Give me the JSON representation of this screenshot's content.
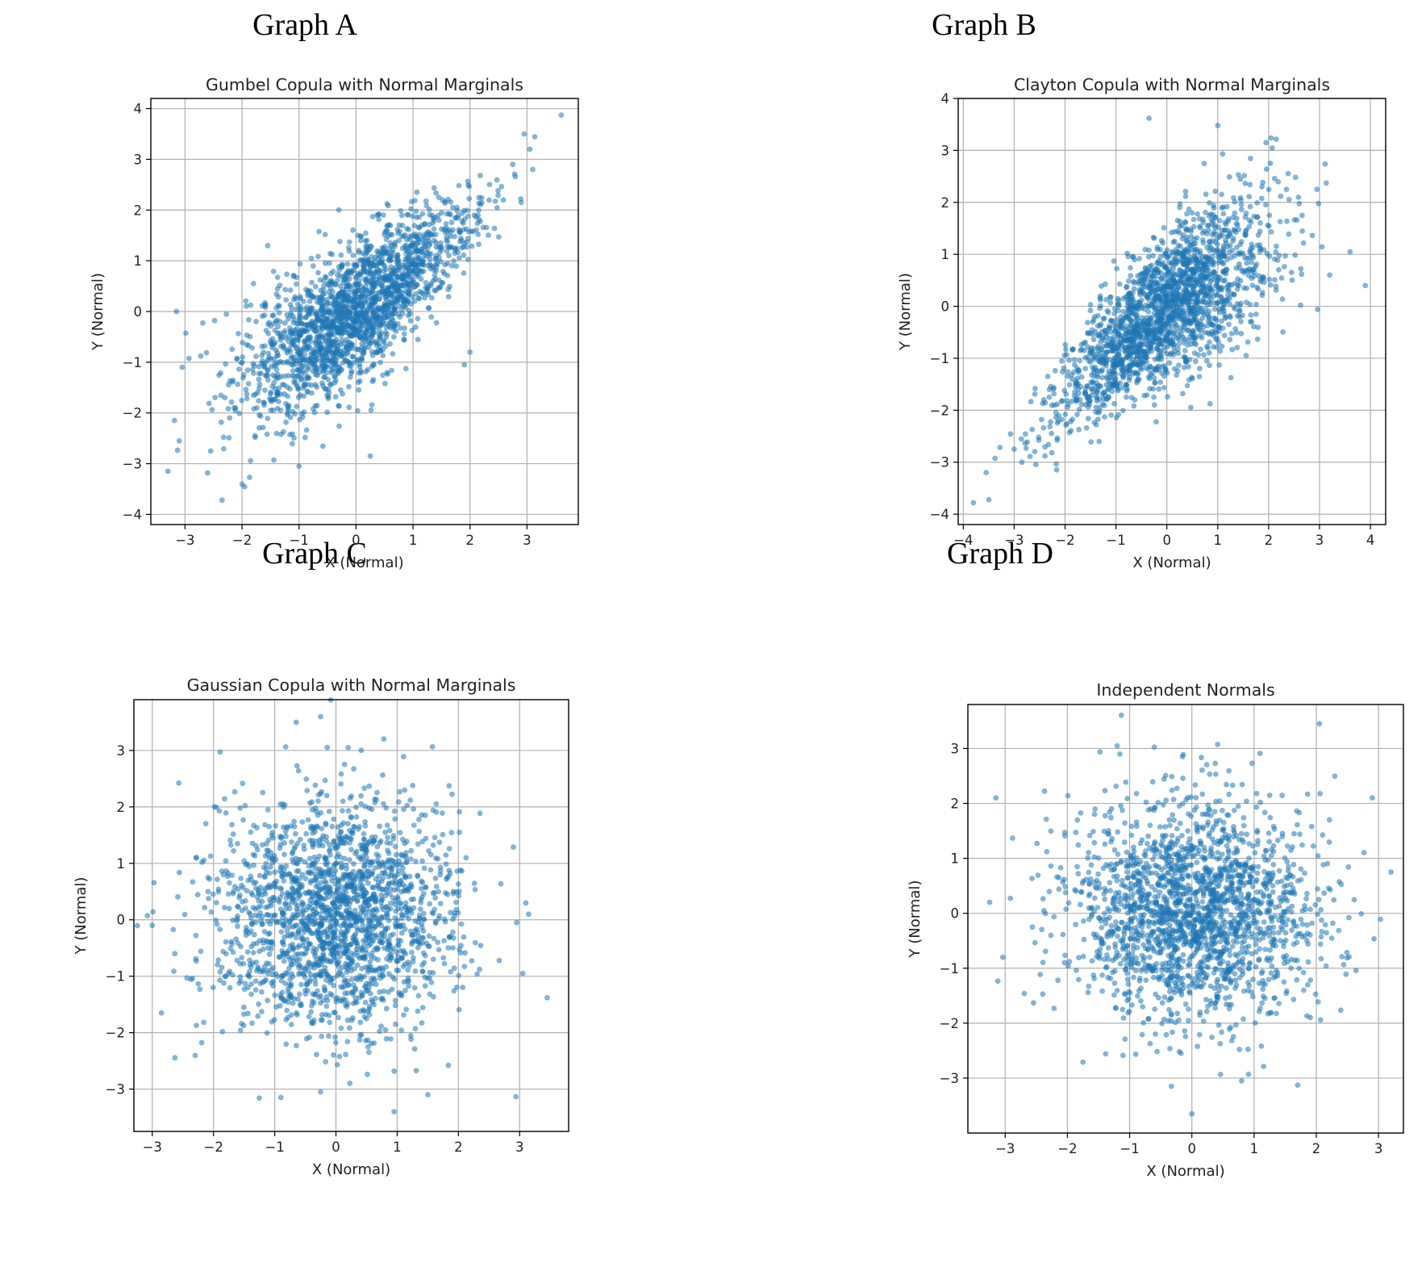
{
  "headings": [
    "Graph A",
    "Graph B",
    "Graph C",
    "Graph D"
  ],
  "chart_data": [
    {
      "type": "scatter",
      "heading": "Graph A",
      "title": "Gumbel Copula with Normal Marginals",
      "xlabel": "X (Normal)",
      "ylabel": "Y (Normal)",
      "xlim": [
        -3.6,
        3.9
      ],
      "ylim": [
        -4.2,
        4.2
      ],
      "xticks": [
        -3,
        -2,
        -1,
        0,
        1,
        2,
        3
      ],
      "yticks": [
        -4,
        -3,
        -2,
        -1,
        0,
        1,
        2,
        3,
        4
      ],
      "grid": true,
      "color": "#1f77b4",
      "n_points": 2000,
      "dependence": "upper-tail",
      "correlation": 0.75,
      "points": [
        [
          3.6,
          3.87
        ],
        [
          2.95,
          3.5
        ],
        [
          3.1,
          2.8
        ],
        [
          3.05,
          3.2
        ],
        [
          2.75,
          2.9
        ],
        [
          2.9,
          2.15
        ],
        [
          -3.3,
          -3.15
        ],
        [
          -2.35,
          -3.72
        ],
        [
          -3.15,
          0.0
        ],
        [
          -3.05,
          -1.1
        ],
        [
          -3.1,
          -2.55
        ],
        [
          -2.55,
          -2.75
        ],
        [
          -1.0,
          -3.05
        ],
        [
          0.25,
          -2.85
        ],
        [
          2.0,
          -0.8
        ],
        [
          -1.55,
          1.3
        ],
        [
          -1.8,
          0.55
        ],
        [
          1.9,
          -1.05
        ]
      ]
    },
    {
      "type": "scatter",
      "heading": "Graph B",
      "title": "Clayton Copula with Normal Marginals",
      "xlabel": "X (Normal)",
      "ylabel": "Y (Normal)",
      "xlim": [
        -4.1,
        4.3
      ],
      "ylim": [
        -4.2,
        4.0
      ],
      "xticks": [
        -4,
        -3,
        -2,
        -1,
        0,
        1,
        2,
        3,
        4
      ],
      "yticks": [
        -4,
        -3,
        -2,
        -1,
        0,
        1,
        2,
        3,
        4
      ],
      "grid": true,
      "color": "#1f77b4",
      "n_points": 2000,
      "dependence": "lower-tail",
      "correlation": 0.72,
      "points": [
        [
          -3.8,
          -3.78
        ],
        [
          -3.5,
          -3.72
        ],
        [
          -3.55,
          -3.2
        ],
        [
          -3.0,
          -2.75
        ],
        [
          -2.85,
          -3.0
        ],
        [
          -0.35,
          3.62
        ],
        [
          1.0,
          3.48
        ],
        [
          1.95,
          3.15
        ],
        [
          3.9,
          0.4
        ],
        [
          3.6,
          1.05
        ],
        [
          3.2,
          0.6
        ],
        [
          2.95,
          2.25
        ],
        [
          2.35,
          2.25
        ]
      ]
    },
    {
      "type": "scatter",
      "heading": "Graph C",
      "title": "Gaussian Copula with Normal Marginals",
      "xlabel": "X (Normal)",
      "ylabel": "Y (Normal)",
      "xlim": [
        -3.3,
        3.8
      ],
      "ylim": [
        -3.75,
        3.9
      ],
      "xticks": [
        -3,
        -2,
        -1,
        0,
        1,
        2,
        3
      ],
      "yticks": [
        -3,
        -2,
        -1,
        0,
        1,
        2,
        3
      ],
      "grid": true,
      "color": "#1f77b4",
      "n_points": 2000,
      "dependence": "none",
      "correlation": 0.0,
      "points": [
        [
          -3.0,
          -0.1
        ],
        [
          -2.85,
          -1.65
        ],
        [
          3.45,
          -1.38
        ],
        [
          -0.25,
          3.6
        ],
        [
          -0.65,
          3.5
        ],
        [
          0.2,
          3.05
        ],
        [
          0.95,
          -3.4
        ],
        [
          -0.9,
          -3.15
        ],
        [
          -0.25,
          -3.05
        ],
        [
          1.5,
          -3.1
        ],
        [
          3.05,
          -0.95
        ],
        [
          3.1,
          0.3
        ]
      ]
    },
    {
      "type": "scatter",
      "heading": "Graph D",
      "title": "Independent Normals",
      "xlabel": "X (Normal)",
      "ylabel": "Y (Normal)",
      "xlim": [
        -3.6,
        3.4
      ],
      "ylim": [
        -4.0,
        3.8
      ],
      "xticks": [
        -3,
        -2,
        -1,
        0,
        1,
        2,
        3
      ],
      "yticks": [
        -3,
        -2,
        -1,
        0,
        1,
        2,
        3
      ],
      "grid": true,
      "color": "#1f77b4",
      "n_points": 2000,
      "dependence": "none",
      "correlation": 0.0,
      "points": [
        [
          -3.15,
          2.1
        ],
        [
          -3.25,
          0.2
        ],
        [
          2.05,
          3.45
        ],
        [
          -1.2,
          3.05
        ],
        [
          0.0,
          -3.65
        ],
        [
          0.8,
          -3.05
        ],
        [
          3.2,
          0.75
        ],
        [
          2.9,
          2.1
        ],
        [
          -0.15,
          2.85
        ]
      ]
    }
  ]
}
